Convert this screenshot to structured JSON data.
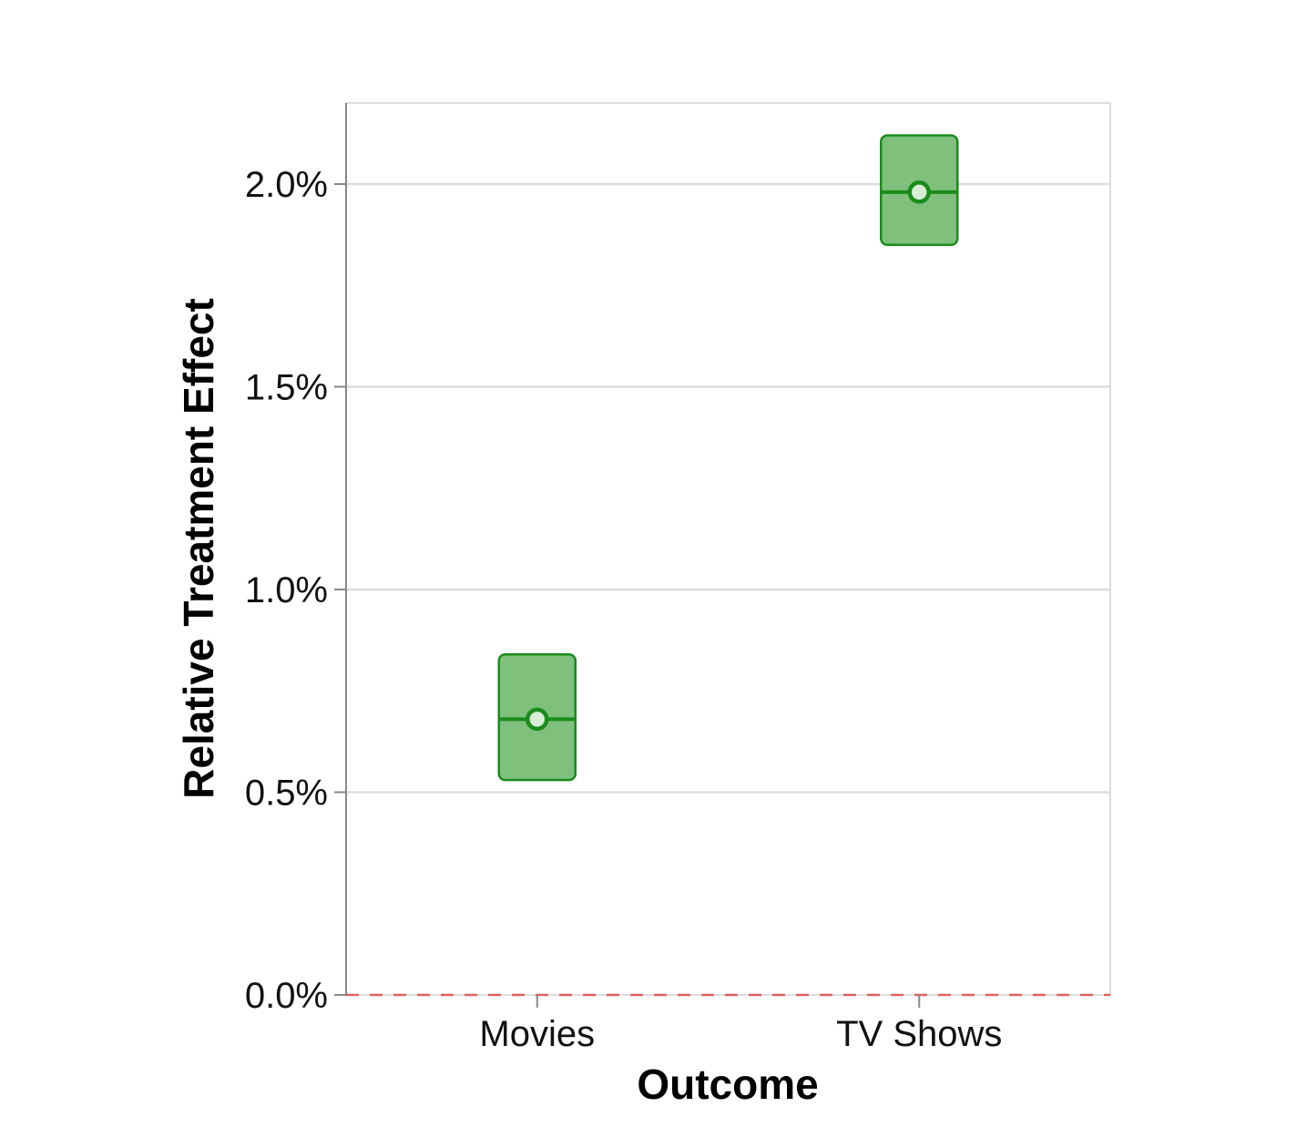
{
  "chart_data": {
    "type": "interval",
    "xlabel": "Outcome",
    "ylabel": "Relative Treatment Effect",
    "categories": [
      "Movies",
      "TV Shows"
    ],
    "points": [
      {
        "category": "Movies",
        "estimate": 0.0068,
        "ci_lower": 0.0053,
        "ci_upper": 0.0084
      },
      {
        "category": "TV Shows",
        "estimate": 0.0198,
        "ci_lower": 0.0185,
        "ci_upper": 0.0212
      }
    ],
    "yticks": [
      0.0,
      0.005,
      0.01,
      0.015,
      0.02
    ],
    "ytick_labels": [
      "0.0%",
      "0.5%",
      "1.0%",
      "1.5%",
      "2.0%"
    ],
    "ylim": [
      0.0,
      0.022
    ],
    "reference_line": 0.0,
    "grid": true,
    "colors": {
      "interval_fill": "#80c07d",
      "interval_stroke": "#1a8c1a",
      "reference_line": "#e06060",
      "grid": "#dddddd",
      "axis": "#888888"
    }
  }
}
